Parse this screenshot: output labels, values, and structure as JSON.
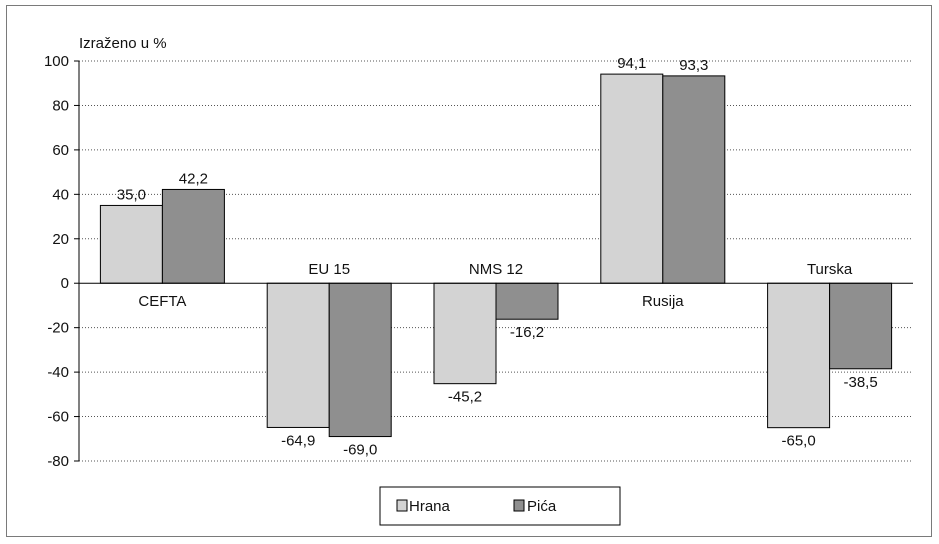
{
  "chart_data": {
    "type": "bar",
    "unit_label": "Izraženo u %",
    "categories": [
      "CEFTA",
      "EU 15",
      "NMS 12",
      "Rusija",
      "Turska"
    ],
    "series": [
      {
        "name": "Hrana",
        "values": [
          35.0,
          -64.9,
          -45.2,
          94.1,
          -65.0
        ],
        "labels": [
          "35,0",
          "-64,9",
          "-45,2",
          "94,1",
          "-65,0"
        ],
        "color": "#d3d3d3"
      },
      {
        "name": "Pića",
        "values": [
          42.2,
          -69.0,
          -16.2,
          93.3,
          -38.5
        ],
        "labels": [
          "42,2",
          "-69,0",
          "-16,2",
          "93,3",
          "-38,5"
        ],
        "color": "#8f8f8f"
      }
    ],
    "ylim": [
      -80,
      100
    ],
    "yticks": [
      100,
      80,
      60,
      40,
      20,
      0,
      -20,
      -40,
      -60,
      -80
    ],
    "grid": "horizontal dotted",
    "legend": "bottom-center"
  }
}
